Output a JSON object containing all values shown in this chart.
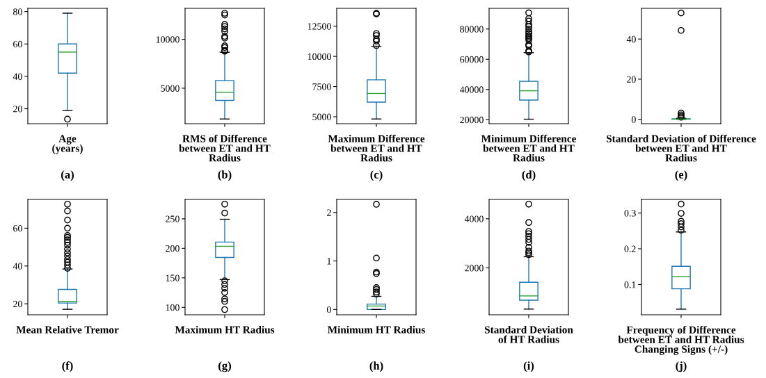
{
  "chart_data": [
    {
      "type": "box",
      "categories": [
        null
      ],
      "xlabel": "Age\n(years)",
      "annotations": [
        "(a)"
      ],
      "ylim": [
        10.8,
        82
      ],
      "yticks": [
        20,
        40,
        60,
        80
      ],
      "grid": false,
      "series": [
        {
          "color": "#1f77b4",
          "boxes": [
            {
              "low": 19,
              "q1": 42,
              "median": 55,
              "q3": 60,
              "high": 79,
              "outliers": [
                13.6
              ]
            }
          ]
        }
      ]
    },
    {
      "type": "box",
      "categories": [
        null
      ],
      "xlabel": "RMS of Difference\nbetween ET and HT\nRadius",
      "annotations": [
        "(b)"
      ],
      "ylim": [
        1370,
        13170
      ],
      "yticks": [
        5000,
        10000
      ],
      "grid": false,
      "series": [
        {
          "color": "#1f77b4",
          "boxes": [
            {
              "low": 1850,
              "q1": 3750,
              "median": 4590,
              "q3": 5790,
              "high": 8680,
              "outliers": [
                12670,
                12490,
                11520,
                11320,
                11070,
                10810,
                10300,
                10130,
                9340,
                9160,
                8860,
                8780
              ]
            }
          ]
        }
      ]
    },
    {
      "type": "box",
      "categories": [
        null
      ],
      "xlabel": "Maximum Difference\nbetween ET and HT\nRadius",
      "annotations": [
        "(c)"
      ],
      "ylim": [
        4425,
        13980
      ],
      "yticks": [
        5000,
        7500,
        10000,
        12500
      ],
      "grid": false,
      "series": [
        {
          "color": "#1f77b4",
          "boxes": [
            {
              "low": 4815,
              "q1": 6210,
              "median": 6930,
              "q3": 8060,
              "high": 10840,
              "outliers": [
                13570,
                13510,
                11890,
                11730,
                11420,
                11270,
                10900
              ]
            }
          ]
        }
      ]
    },
    {
      "type": "box",
      "categories": [
        null
      ],
      "xlabel": "Minimum Difference\nbetween ET and HT\nRadius",
      "annotations": [
        "(d)"
      ],
      "ylim": [
        17360,
        93680
      ],
      "yticks": [
        20000,
        40000,
        60000,
        80000
      ],
      "grid": false,
      "series": [
        {
          "color": "#1f77b4",
          "boxes": [
            {
              "low": 20330,
              "q1": 33020,
              "median": 39130,
              "q3": 45390,
              "high": 64340,
              "outliers": [
                90710,
                86920,
                85270,
                82970,
                81650,
                80000,
                78350,
                77030,
                75540,
                74720,
                73730,
                72740,
                69780,
                68790,
                65660,
                64840
              ]
            }
          ]
        }
      ]
    },
    {
      "type": "box",
      "categories": [
        null
      ],
      "xlabel": "Standard Deviation of Difference\nbetween ET and HT\nRadius",
      "annotations": [
        "(e)"
      ],
      "ylim": [
        -2.2,
        55.3
      ],
      "yticks": [
        0,
        20,
        40
      ],
      "grid": false,
      "series": [
        {
          "color": "#1f77b4",
          "boxes": [
            {
              "low": 0.0,
              "q1": 0.05,
              "median": 0.1,
              "q3": 0.2,
              "high": 0.5,
              "outliers": [
                53.0,
                44.3,
                3.1,
                2.2,
                1.5,
                1.0
              ]
            }
          ]
        }
      ]
    },
    {
      "type": "box",
      "categories": [
        null
      ],
      "xlabel": "Mean Relative Tremor",
      "annotations": [
        "(f)"
      ],
      "ylim": [
        14.2,
        75.2
      ],
      "yticks": [
        20,
        40,
        60
      ],
      "grid": false,
      "series": [
        {
          "color": "#1f77b4",
          "boxes": [
            {
              "low": 17.1,
              "q1": 20.4,
              "median": 21.3,
              "q3": 27.6,
              "high": 38.4,
              "outliers": [
                72.7,
                69.1,
                64.3,
                60.0,
                56.1,
                55.1,
                53.8,
                52.5,
                51.0,
                48.9,
                47.0,
                45.3,
                43.4,
                42.0,
                40.5,
                38.8
              ]
            }
          ]
        }
      ]
    },
    {
      "type": "box",
      "categories": [
        null
      ],
      "xlabel": "Maximum HT Radius",
      "annotations": [
        "(g)"
      ],
      "ylim": [
        87.4,
        282.8
      ],
      "yticks": [
        100,
        150,
        200,
        250
      ],
      "grid": false,
      "series": [
        {
          "color": "#1f77b4",
          "boxes": [
            {
              "low": 147,
              "q1": 184.5,
              "median": 203.4,
              "q3": 210.5,
              "high": 249.2,
              "outliers": [
                274.8,
                259.7,
                145,
                138.7,
                132.4,
                125.2,
                114.3,
                110.1,
                96.2
              ]
            }
          ]
        }
      ]
    },
    {
      "type": "box",
      "categories": [
        null
      ],
      "xlabel": "Minimum HT Radius",
      "annotations": [
        "(h)"
      ],
      "ylim": [
        -0.11,
        2.27
      ],
      "yticks": [
        0,
        1,
        2
      ],
      "grid": false,
      "series": [
        {
          "color": "#1f77b4",
          "boxes": [
            {
              "low": 0,
              "q1": 0,
              "median": 0.07,
              "q3": 0.11,
              "high": 0.27,
              "outliers": [
                2.17,
                1.06,
                0.77,
                0.74,
                0.45,
                0.41,
                0.36,
                0.32
              ]
            }
          ]
        }
      ]
    },
    {
      "type": "box",
      "categories": [
        null
      ],
      "xlabel": "Standard Deviation\nof HT Radius",
      "annotations": [
        "(i)"
      ],
      "ylim": [
        91,
        4788
      ],
      "yticks": [
        2000,
        4000
      ],
      "grid": false,
      "series": [
        {
          "color": "#1f77b4",
          "boxes": [
            {
              "low": 323,
              "q1": 687,
              "median": 859,
              "q3": 1414,
              "high": 2455,
              "outliers": [
                4596,
                3848,
                3485,
                3394,
                3283,
                3162,
                3040,
                2838,
                2687,
                2616,
                2535
              ]
            }
          ]
        }
      ]
    },
    {
      "type": "box",
      "categories": [
        null
      ],
      "xlabel": "Frequency of Difference\nbetween ET and HT Radius\nChanging Signs (+/-)",
      "annotations": [
        "(j)"
      ],
      "ylim": [
        0.0153,
        0.338
      ],
      "yticks": [
        0.1,
        0.2,
        0.3
      ],
      "grid": false,
      "series": [
        {
          "color": "#1f77b4",
          "boxes": [
            {
              "low": 0.031,
              "q1": 0.088,
              "median": 0.122,
              "q3": 0.151,
              "high": 0.247,
              "outliers": [
                0.325,
                0.299,
                0.277,
                0.27,
                0.261,
                0.252
              ]
            }
          ]
        }
      ]
    }
  ]
}
